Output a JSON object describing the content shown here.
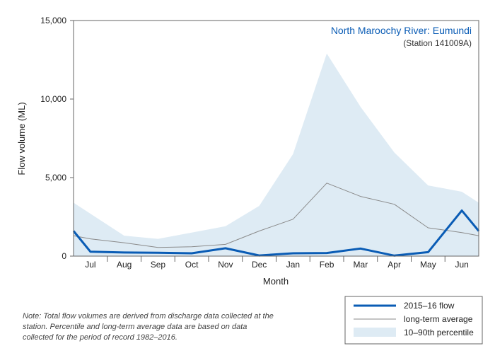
{
  "chart_data": {
    "type": "line",
    "title": "North Maroochy River: Eumundi",
    "subtitle": "(Station 141009A)",
    "xlabel": "Month",
    "ylabel": "Flow volume (ML)",
    "ylim": [
      0,
      15000
    ],
    "yticks": [
      0,
      5000,
      10000,
      15000
    ],
    "ytick_labels": [
      "0",
      "5,000",
      "10,000",
      "15,000"
    ],
    "categories": [
      "Jul",
      "Aug",
      "Sep",
      "Oct",
      "Nov",
      "Dec",
      "Jan",
      "Feb",
      "Mar",
      "Apr",
      "May",
      "Jun"
    ],
    "x_positions": [
      0.5,
      1.5,
      2.5,
      3.5,
      4.5,
      5.5,
      6.5,
      7.5,
      8.5,
      9.5,
      10.5,
      11.5
    ],
    "xlim": [
      0,
      12
    ],
    "band": {
      "name": "10–90th percentile",
      "x": [
        0,
        1.5,
        2.5,
        3.5,
        4.5,
        5.5,
        6.5,
        7.5,
        8.5,
        9.5,
        10.5,
        11.5,
        12
      ],
      "upper": [
        3400,
        1300,
        1100,
        1500,
        1900,
        3200,
        6500,
        12900,
        9500,
        6600,
        4500,
        4100,
        3400
      ],
      "lower": [
        0,
        0,
        0,
        0,
        0,
        0,
        0,
        0,
        0,
        0,
        0,
        0,
        0
      ]
    },
    "series": [
      {
        "name": "2015–16 flow",
        "x": [
          0,
          0.5,
          1.5,
          2.5,
          3.5,
          4.5,
          5.5,
          6.5,
          7.5,
          8.5,
          9.5,
          10.5,
          11.5,
          12
        ],
        "values": [
          1600,
          280,
          230,
          210,
          180,
          500,
          40,
          180,
          200,
          480,
          30,
          250,
          2900,
          1600
        ]
      },
      {
        "name": "long-term average",
        "x": [
          0,
          0.5,
          1.5,
          2.5,
          3.5,
          4.5,
          5.5,
          6.5,
          7.5,
          8.5,
          9.5,
          10.5,
          11.5,
          12
        ],
        "values": [
          1300,
          1100,
          850,
          550,
          600,
          750,
          1600,
          2350,
          4650,
          3800,
          3300,
          1800,
          1500,
          1300
        ]
      }
    ],
    "colors": {
      "flow": "#0a5cb5",
      "average": "#8a8a8a",
      "band": "#deebf4",
      "title": "#0a5cb5",
      "frame": "#666666"
    },
    "grid": false,
    "legend": "bottom-right"
  },
  "note": "Note: Total flow volumes are derived from discharge data collected at the station. Percentile and long-term average data are based on data collected for the period of record 1982–2016."
}
